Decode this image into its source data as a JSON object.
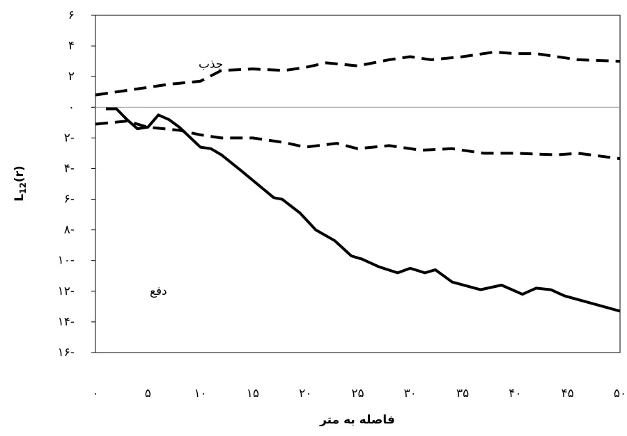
{
  "chart_data": {
    "type": "line",
    "x_label": "فاصله به متر",
    "y_label": {
      "main": "L",
      "sub": "12",
      "suffix": "(r)"
    },
    "annotations": [
      {
        "text": "جذب",
        "x": 11,
        "y": 2.8
      },
      {
        "text": "دفع",
        "x": 6,
        "y": -12
      }
    ],
    "xlim": [
      0,
      50
    ],
    "ylim": [
      -16,
      6
    ],
    "xticks": [
      {
        "value": 0,
        "label": "۰"
      },
      {
        "value": 5,
        "label": "۵"
      },
      {
        "value": 10,
        "label": "۱۰"
      },
      {
        "value": 15,
        "label": "۱۵"
      },
      {
        "value": 20,
        "label": "۲۰"
      },
      {
        "value": 25,
        "label": "۲۵"
      },
      {
        "value": 30,
        "label": "۳۰"
      },
      {
        "value": 35,
        "label": "۳۵"
      },
      {
        "value": 40,
        "label": "۴۰"
      },
      {
        "value": 45,
        "label": "۴۵"
      },
      {
        "value": 50,
        "label": "۵۰"
      }
    ],
    "yticks": [
      {
        "value": 6,
        "label": "۶"
      },
      {
        "value": 4,
        "label": "۴"
      },
      {
        "value": 2,
        "label": "۲"
      },
      {
        "value": 0,
        "label": "۰"
      },
      {
        "value": -2,
        "label": "۲-"
      },
      {
        "value": -4,
        "label": "۴-"
      },
      {
        "value": -6,
        "label": "۶-"
      },
      {
        "value": -8,
        "label": "۸-"
      },
      {
        "value": -10,
        "label": "۱۰-"
      },
      {
        "value": -12,
        "label": "۱۲-"
      },
      {
        "value": -14,
        "label": "۱۴-"
      },
      {
        "value": -16,
        "label": "۱۶-"
      }
    ],
    "zero_line": true,
    "series": [
      {
        "color": "#000000",
        "dash": true,
        "x": [
          0,
          3,
          5,
          7,
          10,
          12,
          15,
          18,
          20,
          22,
          25,
          28,
          30,
          32,
          35,
          38,
          40,
          42,
          44,
          46,
          50
        ],
        "values": [
          0.8,
          1.1,
          1.3,
          1.5,
          1.7,
          2.4,
          2.5,
          2.4,
          2.6,
          2.9,
          2.7,
          3.1,
          3.3,
          3.1,
          3.3,
          3.6,
          3.5,
          3.5,
          3.3,
          3.1,
          3.0
        ]
      },
      {
        "color": "#000000",
        "dash": true,
        "x": [
          0,
          3,
          5,
          8,
          10,
          12,
          15,
          18,
          20,
          23,
          25,
          28,
          31,
          34,
          37,
          40,
          44,
          46,
          50
        ],
        "values": [
          -1.1,
          -0.9,
          -1.3,
          -1.5,
          -1.8,
          -2.0,
          -2.0,
          -2.3,
          -2.6,
          -2.35,
          -2.7,
          -2.5,
          -2.8,
          -2.7,
          -3.0,
          -3.0,
          -3.1,
          -3.0,
          -3.35
        ]
      },
      {
        "color": "#000000",
        "dash": false,
        "x": [
          1,
          2,
          3,
          4,
          5,
          6,
          7,
          8,
          10,
          11,
          12,
          14,
          17,
          17.8,
          19.5,
          21,
          22.8,
          24.4,
          25.4,
          27,
          28.8,
          30,
          31.4,
          32.4,
          34,
          36.7,
          38.7,
          40.7,
          42,
          43.4,
          44.7,
          50
        ],
        "values": [
          -0.1,
          -0.1,
          -0.8,
          -1.4,
          -1.3,
          -0.5,
          -0.8,
          -1.3,
          -2.6,
          -2.7,
          -3.1,
          -4.2,
          -5.9,
          -6.0,
          -6.9,
          -8.0,
          -8.7,
          -9.7,
          -9.9,
          -10.4,
          -10.8,
          -10.5,
          -10.8,
          -10.6,
          -11.4,
          -11.9,
          -11.6,
          -12.2,
          -11.8,
          -11.9,
          -12.3,
          -13.3
        ]
      }
    ]
  }
}
